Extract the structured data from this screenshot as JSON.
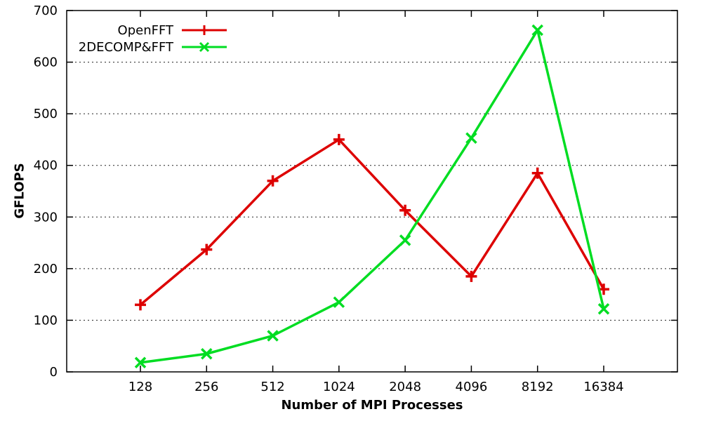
{
  "chart_data": {
    "type": "line",
    "title": "",
    "xlabel": "Number of MPI Processes",
    "ylabel": "GFLOPS",
    "categories": [
      "128",
      "256",
      "512",
      "1024",
      "2048",
      "4096",
      "8192",
      "16384"
    ],
    "ylim": [
      0,
      700
    ],
    "ytick_step": 100,
    "yticks": [
      0,
      100,
      200,
      300,
      400,
      500,
      600,
      700
    ],
    "grid": true,
    "grid_style": "dotted",
    "legend_position": "top-left",
    "background": "#ffffff",
    "axis_color": "#000000",
    "series": [
      {
        "name": "OpenFFT",
        "color": "#dd0000",
        "marker": "plus",
        "values": [
          130,
          237,
          370,
          450,
          313,
          185,
          385,
          160
        ]
      },
      {
        "name": "2DECOMP&FFT",
        "color": "#00dd22",
        "marker": "x",
        "values": [
          18,
          35,
          70,
          135,
          255,
          453,
          662,
          122
        ]
      }
    ]
  }
}
